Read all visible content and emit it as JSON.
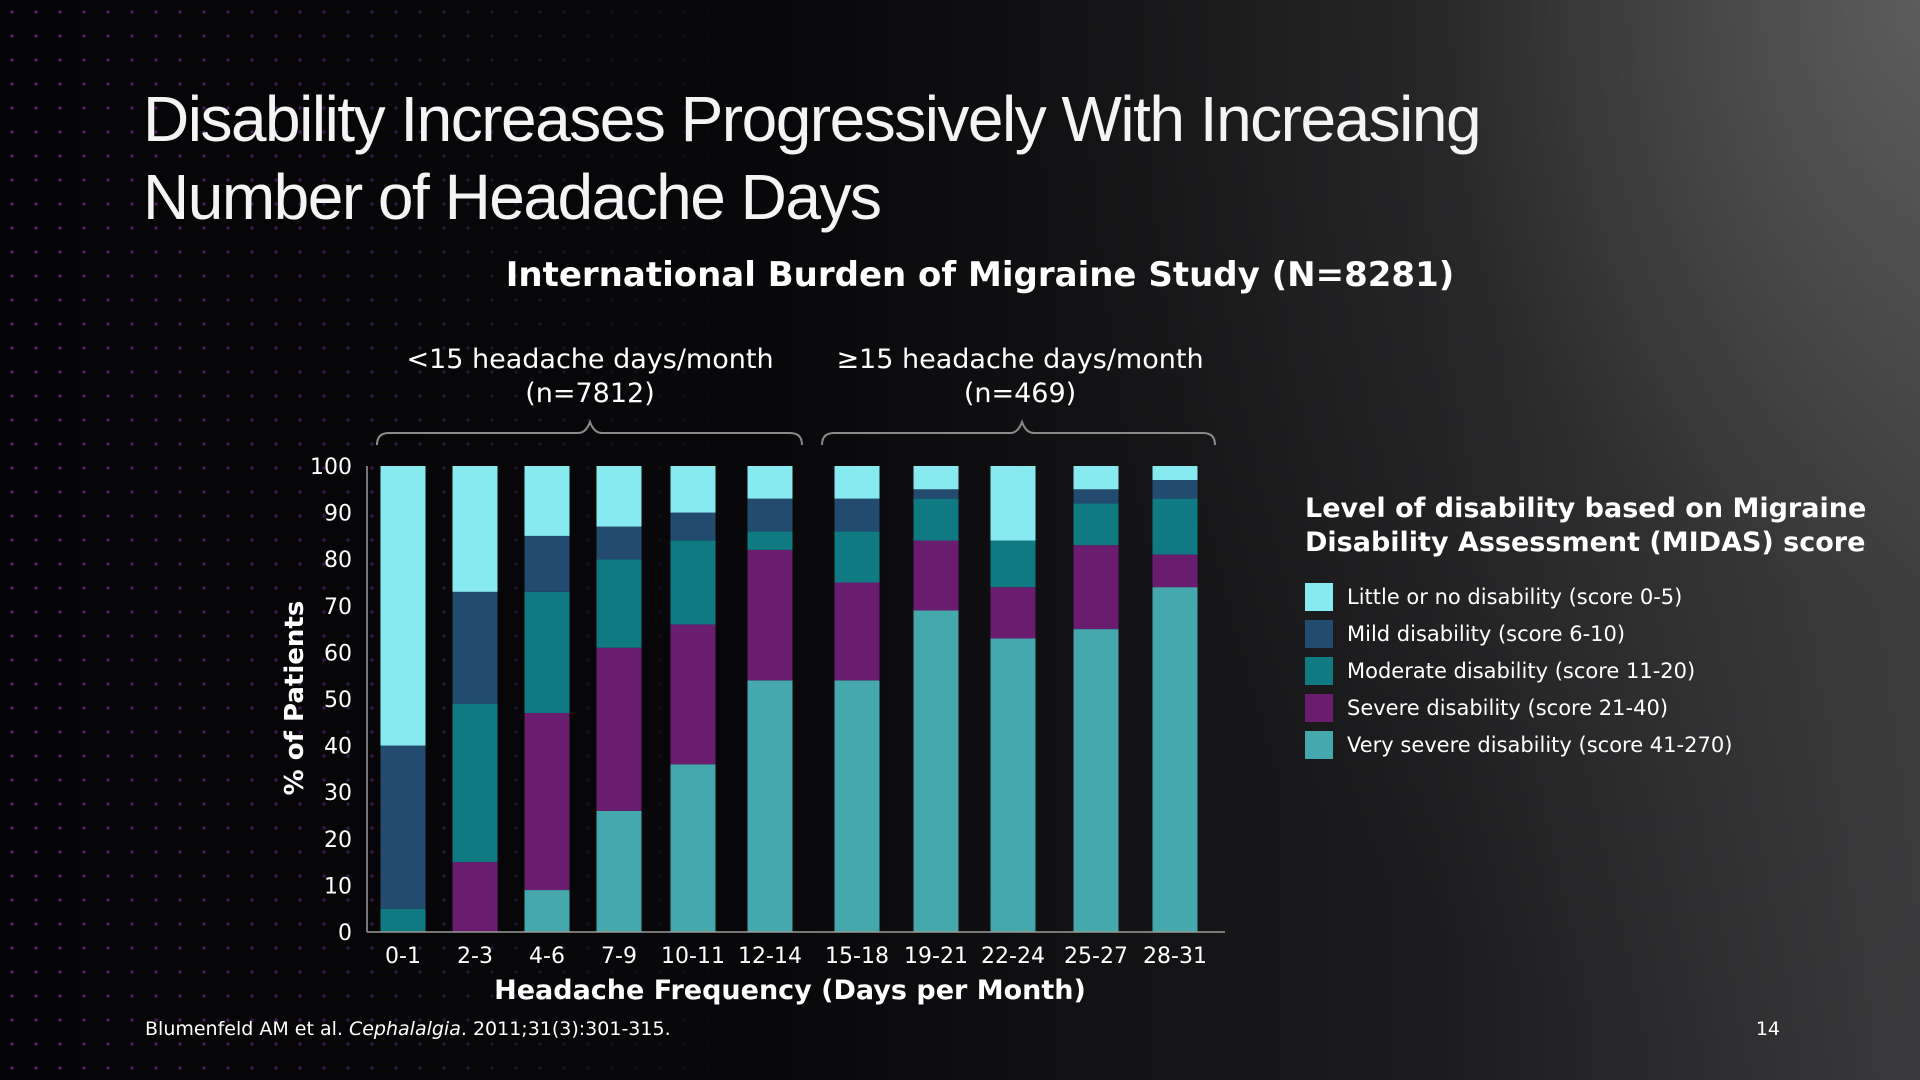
{
  "slide": {
    "title_line1": "Disability Increases Progressively With Increasing",
    "title_line2": "Number of Headache Days",
    "subtitle": "International Burden of Migraine Study (N=8281)",
    "page_number": "14"
  },
  "groups": [
    {
      "label_line1": "<15 headache days/month",
      "label_line2": "(n=7812)"
    },
    {
      "label_line1": "≥15 headache days/month",
      "label_line2": "(n=469)"
    }
  ],
  "legend": {
    "title_line1": "Level of disability based on Migraine",
    "title_line2": "Disability Assessment (MIDAS) score",
    "items": [
      {
        "label": "Little or no disability (score 0-5)",
        "color": "#88eaf1"
      },
      {
        "label": "Mild disability (score 6-10)",
        "color": "#234b6f"
      },
      {
        "label": "Moderate disability (score 11-20)",
        "color": "#0f7a82"
      },
      {
        "label": "Severe disability (score 21-40)",
        "color": "#6a1d6e"
      },
      {
        "label": "Very severe disability (score 41-270)",
        "color": "#44a8ac"
      }
    ]
  },
  "footnote": {
    "authors": "Blumenfeld AM et al. ",
    "journal": "Cephalalgia",
    "citation": ". 2011;31(3):301-315."
  },
  "chart_data": {
    "type": "bar",
    "stacked": true,
    "xlabel": "Headache Frequency (Days per Month)",
    "ylabel": "% of Patients",
    "ylim": [
      0,
      100
    ],
    "yticks": [
      0,
      10,
      20,
      30,
      40,
      50,
      60,
      70,
      80,
      90,
      100
    ],
    "categories": [
      "0-1",
      "2-3",
      "4-6",
      "7-9",
      "10-11",
      "12-14",
      "15-18",
      "19-21",
      "22-24",
      "25-27",
      "28-31"
    ],
    "series": [
      {
        "name": "Very severe disability (score 41-270)",
        "color": "#44a8ac",
        "values": [
          0,
          0,
          9,
          26,
          36,
          54,
          54,
          69,
          63,
          65,
          74
        ]
      },
      {
        "name": "Severe disability (score 21-40)",
        "color": "#6a1d6e",
        "values": [
          0,
          15,
          38,
          35,
          30,
          28,
          21,
          15,
          11,
          18,
          7
        ]
      },
      {
        "name": "Moderate disability (score 11-20)",
        "color": "#0f7a82",
        "values": [
          5,
          34,
          26,
          19,
          18,
          4,
          11,
          9,
          10,
          9,
          12
        ]
      },
      {
        "name": "Mild disability (score 6-10)",
        "color": "#234b6f",
        "values": [
          35,
          24,
          12,
          7,
          6,
          7,
          7,
          2,
          0,
          3,
          4
        ]
      },
      {
        "name": "Little or no disability (score 0-5)",
        "color": "#88eaf1",
        "values": [
          60,
          27,
          15,
          13,
          10,
          7,
          7,
          5,
          16,
          5,
          3
        ]
      }
    ]
  }
}
